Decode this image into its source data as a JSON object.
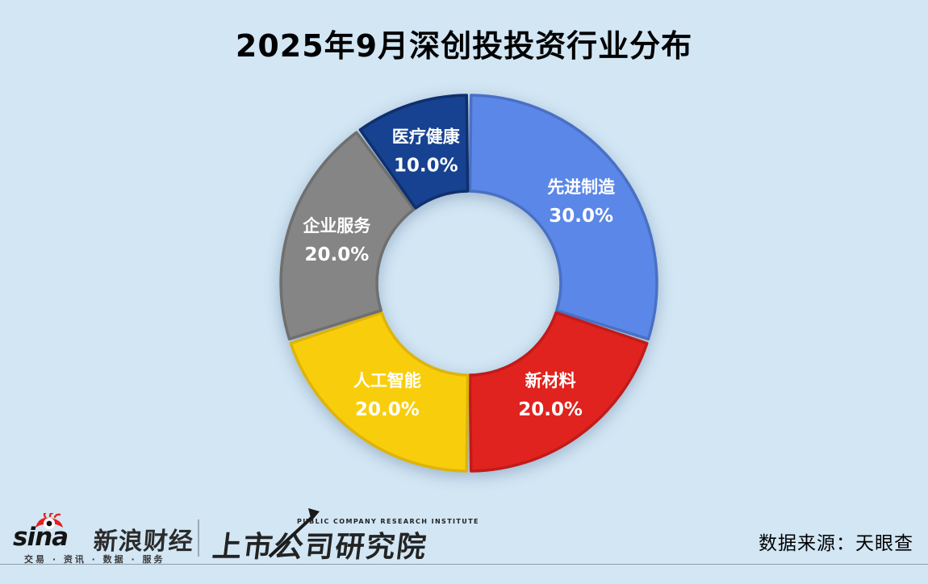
{
  "title": "2025年9月深创投投资行业分布",
  "chart_data": {
    "type": "pie",
    "variant": "donut",
    "title": "2025年9月深创投投资行业分布",
    "unit": "%",
    "direction": "clockwise",
    "start_angle_deg": 0,
    "inner_radius_ratio": 0.49,
    "legend_position": "labels-on-slices",
    "label_color": "#FFFFFF",
    "slices": [
      {
        "label": "先进制造",
        "value": 30.0,
        "display": "30.0%",
        "color": "#5B87E8",
        "edge": "#4A70C4"
      },
      {
        "label": "新材料",
        "value": 20.0,
        "display": "20.0%",
        "color": "#E0231E",
        "edge": "#C01B1B"
      },
      {
        "label": "人工智能",
        "value": 20.0,
        "display": "20.0%",
        "color": "#F8CE0C",
        "edge": "#DDB40A"
      },
      {
        "label": "企业服务",
        "value": 20.0,
        "display": "20.0%",
        "color": "#858585",
        "edge": "#6F6F6F"
      },
      {
        "label": "医疗健康",
        "value": 10.0,
        "display": "10.0%",
        "color": "#164291",
        "edge": "#102F6E"
      }
    ]
  },
  "footer": {
    "sina": {
      "wordmark": "sina",
      "brand": "新浪财经",
      "tagline": "交易 · 资讯 · 数据 · 服务"
    },
    "institute": {
      "en": "PUBLIC COMPANY RESEARCH INSTITUTE",
      "zh": "上市公司研究院"
    },
    "source": "数据来源：天眼查"
  },
  "colors": {
    "background": "#D2E6F4",
    "title": "#000000",
    "rule": "#8E9DA8",
    "sina_red": "#E6201E"
  }
}
